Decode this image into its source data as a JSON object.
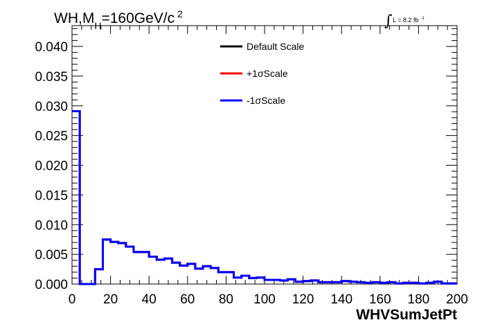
{
  "chart_data": {
    "type": "histogram-step",
    "title_main": "WH,M",
    "title_sub": "H",
    "title_rest": "=160GeV/c",
    "title_sup": "2",
    "lumi_text": "L = 8.2 fb",
    "lumi_sup": "-1",
    "xlabel": "WHVSumJetPt",
    "ylabel": "",
    "xlim": [
      0,
      200
    ],
    "ylim": [
      0,
      0.0435
    ],
    "x_ticks": [
      0,
      20,
      40,
      60,
      80,
      100,
      120,
      140,
      160,
      180,
      200
    ],
    "x_tick_labels": [
      "0",
      "20",
      "40",
      "60",
      "80",
      "100",
      "120",
      "140",
      "160",
      "180",
      "200"
    ],
    "y_ticks": [
      0.0,
      0.005,
      0.01,
      0.015,
      0.02,
      0.025,
      0.03,
      0.035,
      0.04
    ],
    "y_tick_labels": [
      "0.000",
      "0.005",
      "0.010",
      "0.015",
      "0.020",
      "0.025",
      "0.030",
      "0.035",
      "0.040"
    ],
    "bin_width": 4,
    "bin_low_edges": [
      0,
      4,
      8,
      12,
      16,
      20,
      24,
      28,
      32,
      36,
      40,
      44,
      48,
      52,
      56,
      60,
      64,
      68,
      72,
      76,
      80,
      84,
      88,
      92,
      96,
      100,
      104,
      108,
      112,
      116,
      120,
      124,
      128,
      132,
      136,
      140,
      144,
      148,
      152,
      156,
      160,
      164,
      168,
      172,
      176,
      180,
      184,
      188,
      192,
      196
    ],
    "series": [
      {
        "name": "Default Scale",
        "color": "#000000",
        "values": [
          0.0291,
          0.0,
          0.0,
          0.0025,
          0.0075,
          0.0071,
          0.0069,
          0.0063,
          0.0054,
          0.0054,
          0.0046,
          0.0041,
          0.0043,
          0.0036,
          0.0031,
          0.0034,
          0.0026,
          0.003,
          0.0027,
          0.002,
          0.002,
          0.0011,
          0.0014,
          0.001,
          0.0011,
          0.0007,
          0.0007,
          0.0006,
          0.0008,
          0.0004,
          0.0005,
          0.0006,
          0.0003,
          0.0003,
          0.0003,
          0.0005,
          0.0004,
          0.0003,
          0.0002,
          0.0003,
          0.0002,
          0.0003,
          0.0001,
          0.0002,
          0.0002,
          0.0001,
          0.0002,
          0.0004,
          0.0001,
          0.0001
        ]
      },
      {
        "name": "+1σScale",
        "color": "#ff0000",
        "values": [
          0.0291,
          0.0,
          0.0,
          0.0025,
          0.0075,
          0.0071,
          0.0069,
          0.0063,
          0.0054,
          0.0054,
          0.0046,
          0.0041,
          0.0043,
          0.0036,
          0.0031,
          0.0034,
          0.0026,
          0.003,
          0.0027,
          0.002,
          0.002,
          0.0011,
          0.0014,
          0.001,
          0.0011,
          0.0007,
          0.0007,
          0.0006,
          0.0008,
          0.0004,
          0.0005,
          0.0006,
          0.0003,
          0.0003,
          0.0003,
          0.0005,
          0.0004,
          0.0003,
          0.0002,
          0.0003,
          0.0002,
          0.0003,
          0.0001,
          0.0002,
          0.0002,
          0.0001,
          0.0002,
          0.0004,
          0.0001,
          0.0001
        ]
      },
      {
        "name": "-1σScale",
        "color": "#0000ff",
        "values": [
          0.0291,
          0.0,
          0.0,
          0.0025,
          0.0075,
          0.0071,
          0.0069,
          0.0063,
          0.0054,
          0.0054,
          0.0046,
          0.0041,
          0.0043,
          0.0036,
          0.0031,
          0.0034,
          0.0026,
          0.003,
          0.0027,
          0.002,
          0.002,
          0.0011,
          0.0014,
          0.001,
          0.0011,
          0.0007,
          0.0007,
          0.0006,
          0.0008,
          0.0004,
          0.0005,
          0.0006,
          0.0003,
          0.0003,
          0.0003,
          0.0005,
          0.0004,
          0.0003,
          0.0002,
          0.0003,
          0.0002,
          0.0003,
          0.0001,
          0.0002,
          0.0002,
          0.0001,
          0.0002,
          0.0004,
          0.0001,
          0.0001
        ]
      }
    ],
    "legend": [
      {
        "label": "Default Scale",
        "color": "#000000"
      },
      {
        "label": "+1σScale",
        "color": "#ff0000"
      },
      {
        "label": "-1σScale",
        "color": "#0000ff"
      }
    ],
    "legend_position": "top-center",
    "grid": false
  }
}
